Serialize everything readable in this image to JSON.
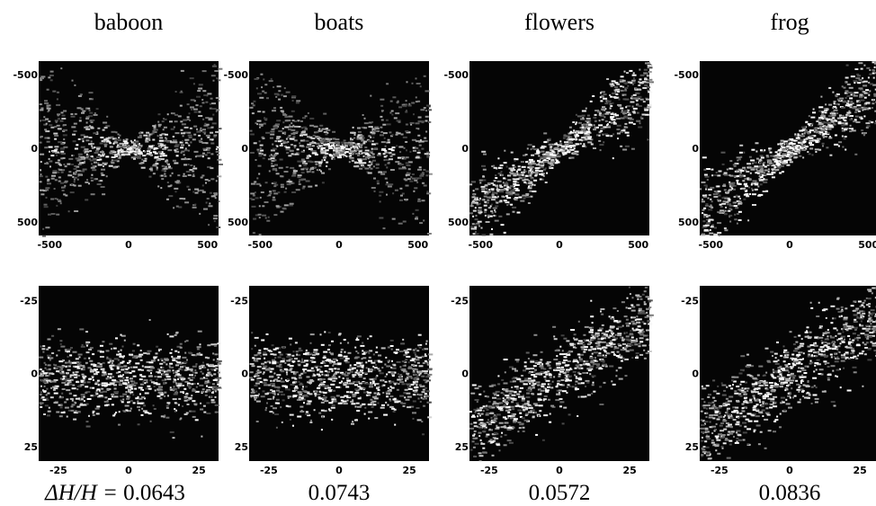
{
  "columns": [
    {
      "title": "baboon",
      "value": "0.0643"
    },
    {
      "title": "boats",
      "value": "0.0743"
    },
    {
      "title": "flowers",
      "value": "0.0572"
    },
    {
      "title": "frog",
      "value": "0.0836"
    }
  ],
  "top_row": {
    "xticks": [
      -500,
      0,
      500
    ],
    "yticks": [
      -500,
      0,
      500
    ]
  },
  "bottom_row": {
    "xticks": [
      -25,
      0,
      25
    ],
    "yticks": [
      -25,
      0,
      25
    ]
  },
  "ratio_label": "ΔH/H ="
}
